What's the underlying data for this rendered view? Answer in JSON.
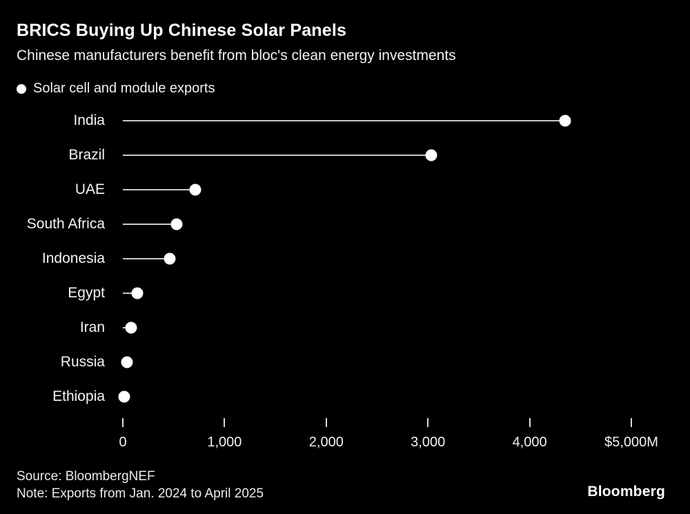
{
  "chart_data": {
    "type": "bar",
    "subtype": "horizontal-lollipop",
    "title": "BRICS Buying Up Chinese Solar Panels",
    "subtitle": "Chinese manufacturers benefit from bloc's clean energy investments",
    "series_label": "Solar cell and module exports",
    "categories": [
      "India",
      "Brazil",
      "UAE",
      "South Africa",
      "Indonesia",
      "Egypt",
      "Iran",
      "Russia",
      "Ethiopia"
    ],
    "values": [
      4350,
      3030,
      710,
      530,
      460,
      140,
      80,
      40,
      15
    ],
    "xlabel": "",
    "ylabel": "",
    "xlim": [
      0,
      5000
    ],
    "x_ticks": [
      0,
      1000,
      2000,
      3000,
      4000,
      5000
    ],
    "x_tick_labels": [
      "0",
      "1,000",
      "2,000",
      "3,000",
      "4,000",
      "$5,000M"
    ],
    "units": "USD millions",
    "grid": "off",
    "legend_position": "top-left",
    "colors": {
      "background": "#000000",
      "dot": "#ffffff",
      "stem": "#c9c9c9",
      "text": "#ffffff"
    }
  },
  "footer": {
    "source": "Source: BloombergNEF",
    "note": "Note: Exports from Jan. 2024 to April 2025",
    "brand": "Bloomberg"
  }
}
